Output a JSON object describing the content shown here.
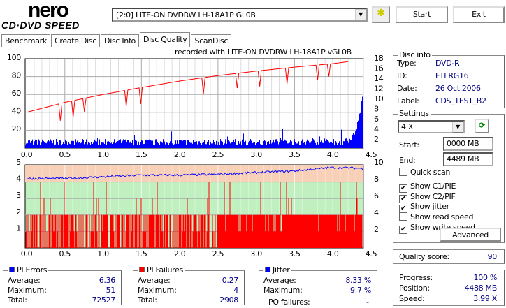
{
  "app": {
    "logo_top": "nero",
    "logo_bottom": "CD·DVD SPEED"
  },
  "toolbar": {
    "drive": "[2:0]  LITE-ON DVDRW LH-18A1P GL0B",
    "start": "Start",
    "exit": "Exit"
  },
  "tabs": [
    "Benchmark",
    "Create Disc",
    "Disc Info",
    "Disc Quality",
    "ScanDisc"
  ],
  "active_tab": "Disc Quality",
  "disc_info": {
    "title": "Disc info",
    "rows": [
      {
        "label": "Type:",
        "value": "DVD-R"
      },
      {
        "label": "ID:",
        "value": "FTI RG16"
      },
      {
        "label": "Date:",
        "value": "26 Oct 2006"
      },
      {
        "label": "Label:",
        "value": "CDS_TEST_B2"
      }
    ]
  },
  "settings": {
    "title": "Settings",
    "speed": "4 X",
    "start_label": "Start:",
    "start": "0000 MB",
    "end_label": "End:",
    "end": "4489 MB",
    "checks": [
      {
        "label": "Quick scan",
        "checked": false
      },
      {
        "label": "Show C1/PIE",
        "checked": true
      },
      {
        "label": "Show C2/PIF",
        "checked": true
      },
      {
        "label": "Show jitter",
        "checked": true
      },
      {
        "label": "Show read speed",
        "checked": false
      },
      {
        "label": "Show write speed",
        "checked": true
      }
    ],
    "advanced": "Advanced"
  },
  "quality": {
    "label": "Quality score:",
    "value": "90"
  },
  "progress": {
    "rows": [
      {
        "label": "Progress:",
        "value": "100 %"
      },
      {
        "label": "Position:",
        "value": "4488 MB"
      },
      {
        "label": "Speed:",
        "value": "3.99 X"
      }
    ]
  },
  "pi_errors": {
    "title": "PI Errors",
    "color": "#0000ff",
    "rows": [
      {
        "label": "Average:",
        "value": "6.36"
      },
      {
        "label": "Maximum:",
        "value": "51"
      },
      {
        "label": "Total:",
        "value": "72527"
      }
    ]
  },
  "pi_failures": {
    "title": "PI Failures",
    "color": "#ff0000",
    "rows": [
      {
        "label": "Average:",
        "value": "0.27"
      },
      {
        "label": "Maximum:",
        "value": "4"
      },
      {
        "label": "Total:",
        "value": "2908"
      }
    ]
  },
  "jitter": {
    "title": "Jitter",
    "color": "#0000ff",
    "rows": [
      {
        "label": "Average:",
        "value": "8.33 %"
      },
      {
        "label": "Maximum:",
        "value": "9.7 %"
      }
    ],
    "po_label": "PO failures:",
    "po_value": "-"
  },
  "chart_data": [
    {
      "type": "bar",
      "title": "recorded with LITE-ON DVDRW LH-18A1P   vGL0B",
      "xlim": [
        0,
        4.5
      ],
      "ylim": [
        0,
        100
      ],
      "y2lim": [
        0,
        18
      ],
      "xticks": [
        "0.0",
        "0.5",
        "1.0",
        "1.5",
        "2.0",
        "2.5",
        "3.0",
        "3.5",
        "4.0",
        "4.5"
      ],
      "yticks": [
        "100",
        "80",
        "60",
        "40",
        "20"
      ],
      "y2ticks": [
        "18",
        "16",
        "14",
        "12",
        "10",
        "8",
        "6",
        "4",
        "2"
      ],
      "pie_series": {
        "x_end": 4.39,
        "typical": 6,
        "end_spike": 51
      },
      "write_speed": {
        "x": [
          0,
          0.5,
          1,
          1.5,
          2,
          2.5,
          3,
          3.5,
          4,
          4.2
        ],
        "y": [
          7.2,
          9.2,
          10.8,
          12.2,
          13.5,
          14.6,
          15.5,
          16.3,
          17,
          17.4
        ],
        "dips_at": [
          0.45,
          0.6,
          0.75,
          1.3,
          1.5,
          2.3,
          2.75,
          3.05,
          3.4,
          3.8,
          3.95
        ]
      }
    },
    {
      "type": "bar",
      "xlim": [
        0,
        4.5
      ],
      "ylim": [
        0,
        5
      ],
      "y2lim": [
        0,
        10
      ],
      "xticks": [
        "0.0",
        "0.5",
        "1.0",
        "1.5",
        "2.0",
        "2.5",
        "3.0",
        "3.5",
        "4.0",
        "4.5"
      ],
      "yticks": [
        "5",
        "4",
        "3",
        "2",
        "1"
      ],
      "y2ticks": [
        "10",
        "8",
        "6",
        "4",
        "2"
      ],
      "jitter_series": {
        "x": [
          0,
          0.5,
          1,
          1.5,
          2,
          2.5,
          3,
          3.5,
          4,
          4.4
        ],
        "y": [
          7.9,
          7.9,
          8.1,
          8.3,
          8.3,
          8.4,
          8.6,
          8.8,
          9.2,
          9.1
        ]
      },
      "pif": {
        "max": 4,
        "typical": 2
      }
    }
  ]
}
